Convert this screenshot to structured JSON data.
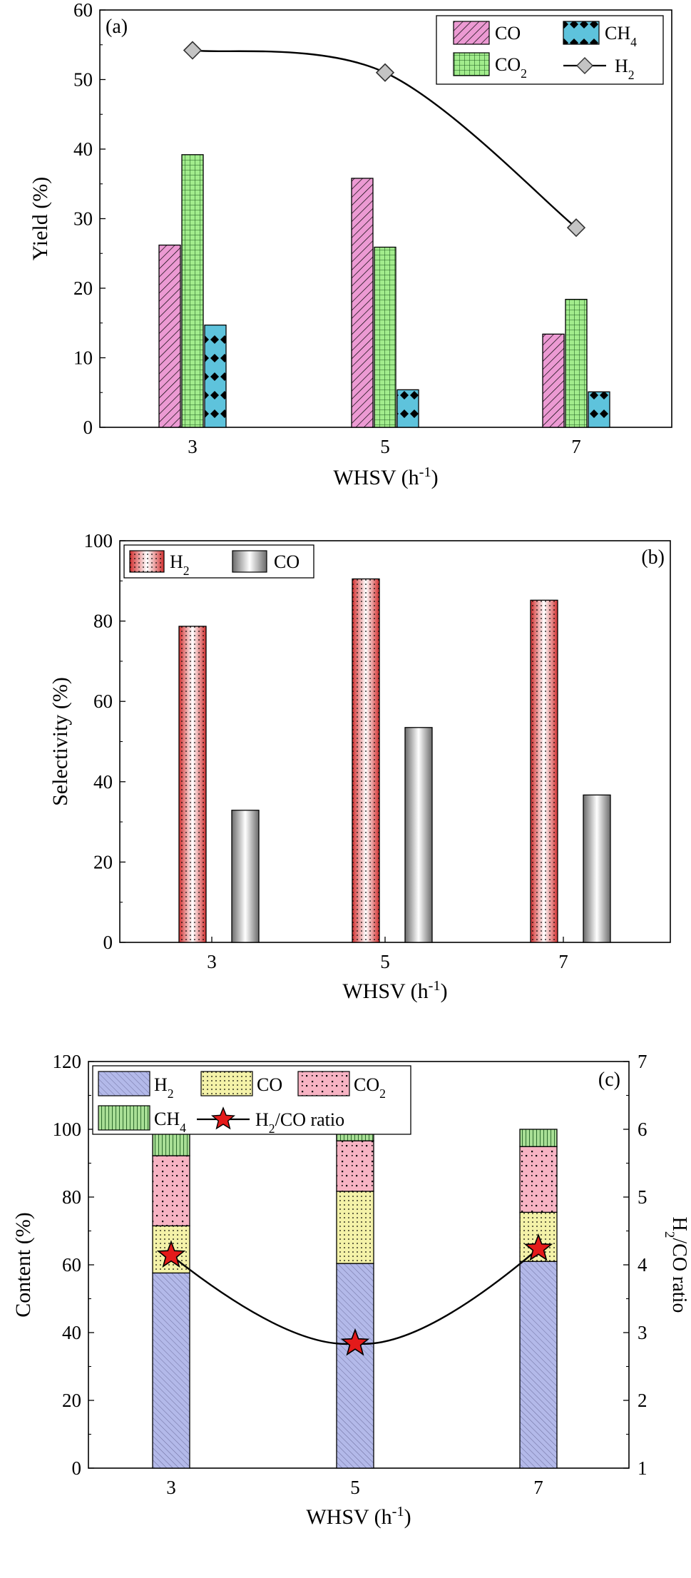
{
  "colors": {
    "co_a": "#ec9ad3",
    "co2_a": "#a2ec8c",
    "ch4_a": "#5ec3dc",
    "h2_marker": "#c4c4c4",
    "h2_b": "#e23c3c",
    "co_b": "#9a9a9a",
    "h2_c": "#b3b9e9",
    "co_c": "#f4f2a8",
    "co2_c": "#f7b3c3",
    "ch4_c": "#a9df96",
    "star": "#e41a1a"
  },
  "chart_data": [
    {
      "type": "bar",
      "panel_label": "(a)",
      "categories": [
        "3",
        "5",
        "7"
      ],
      "xlabel": "WHSV (h",
      "xlabel_sup": "-1",
      "xlabel_end": ")",
      "ylabel": "Yield (%)",
      "ylim": [
        0,
        60
      ],
      "yticks": [
        "0",
        "10",
        "20",
        "30",
        "40",
        "50",
        "60"
      ],
      "series": [
        {
          "name": "CO",
          "sub": "",
          "values": [
            26.2,
            35.8,
            13.4
          ]
        },
        {
          "name": "CO",
          "sub": "2",
          "values": [
            39.2,
            25.9,
            18.4
          ]
        },
        {
          "name": "CH",
          "sub": "4",
          "values": [
            14.7,
            5.4,
            5.1
          ]
        }
      ],
      "line_series": {
        "name": "H",
        "sub": "2",
        "values": [
          54.2,
          51.0,
          28.7
        ]
      },
      "legend": "top-right"
    },
    {
      "type": "bar",
      "panel_label": "(b)",
      "categories": [
        "3",
        "5",
        "7"
      ],
      "xlabel": "WHSV (h",
      "xlabel_sup": "-1",
      "xlabel_end": ")",
      "ylabel": "Selectivity (%)",
      "ylim": [
        0,
        100
      ],
      "yticks": [
        "0",
        "20",
        "40",
        "60",
        "80",
        "100"
      ],
      "series": [
        {
          "name": "H",
          "sub": "2",
          "values": [
            78.7,
            90.5,
            85.2
          ]
        },
        {
          "name": "CO",
          "sub": "",
          "values": [
            32.9,
            53.5,
            36.7
          ]
        }
      ],
      "legend": "top-left"
    },
    {
      "type": "bar",
      "panel_label": "(c)",
      "categories": [
        "3",
        "5",
        "7"
      ],
      "xlabel": "WHSV (h",
      "xlabel_sup": "-1",
      "xlabel_end": ")",
      "ylabel": "Content (%)",
      "ylim": [
        0,
        120
      ],
      "yticks": [
        "0",
        "20",
        "40",
        "60",
        "80",
        "100",
        "120"
      ],
      "y2label": "H",
      "y2label_sub": "2",
      "y2label_end": "/CO ratio",
      "y2lim": [
        1,
        7
      ],
      "y2ticks": [
        "1",
        "2",
        "3",
        "4",
        "5",
        "6",
        "7"
      ],
      "stacked_series": [
        {
          "name": "H",
          "sub": "2",
          "values": [
            57.6,
            60.4,
            61.0
          ]
        },
        {
          "name": "CO",
          "sub": "",
          "values": [
            13.9,
            21.3,
            14.5
          ]
        },
        {
          "name": "CO",
          "sub": "2",
          "values": [
            20.7,
            14.9,
            19.4
          ]
        },
        {
          "name": "CH",
          "sub": "4",
          "values": [
            7.8,
            3.4,
            5.1
          ]
        }
      ],
      "ratio_series": {
        "name": "H",
        "sub": "2",
        "name_end": "/CO ratio",
        "values": [
          4.14,
          2.84,
          4.24
        ]
      },
      "legend": "top"
    }
  ]
}
